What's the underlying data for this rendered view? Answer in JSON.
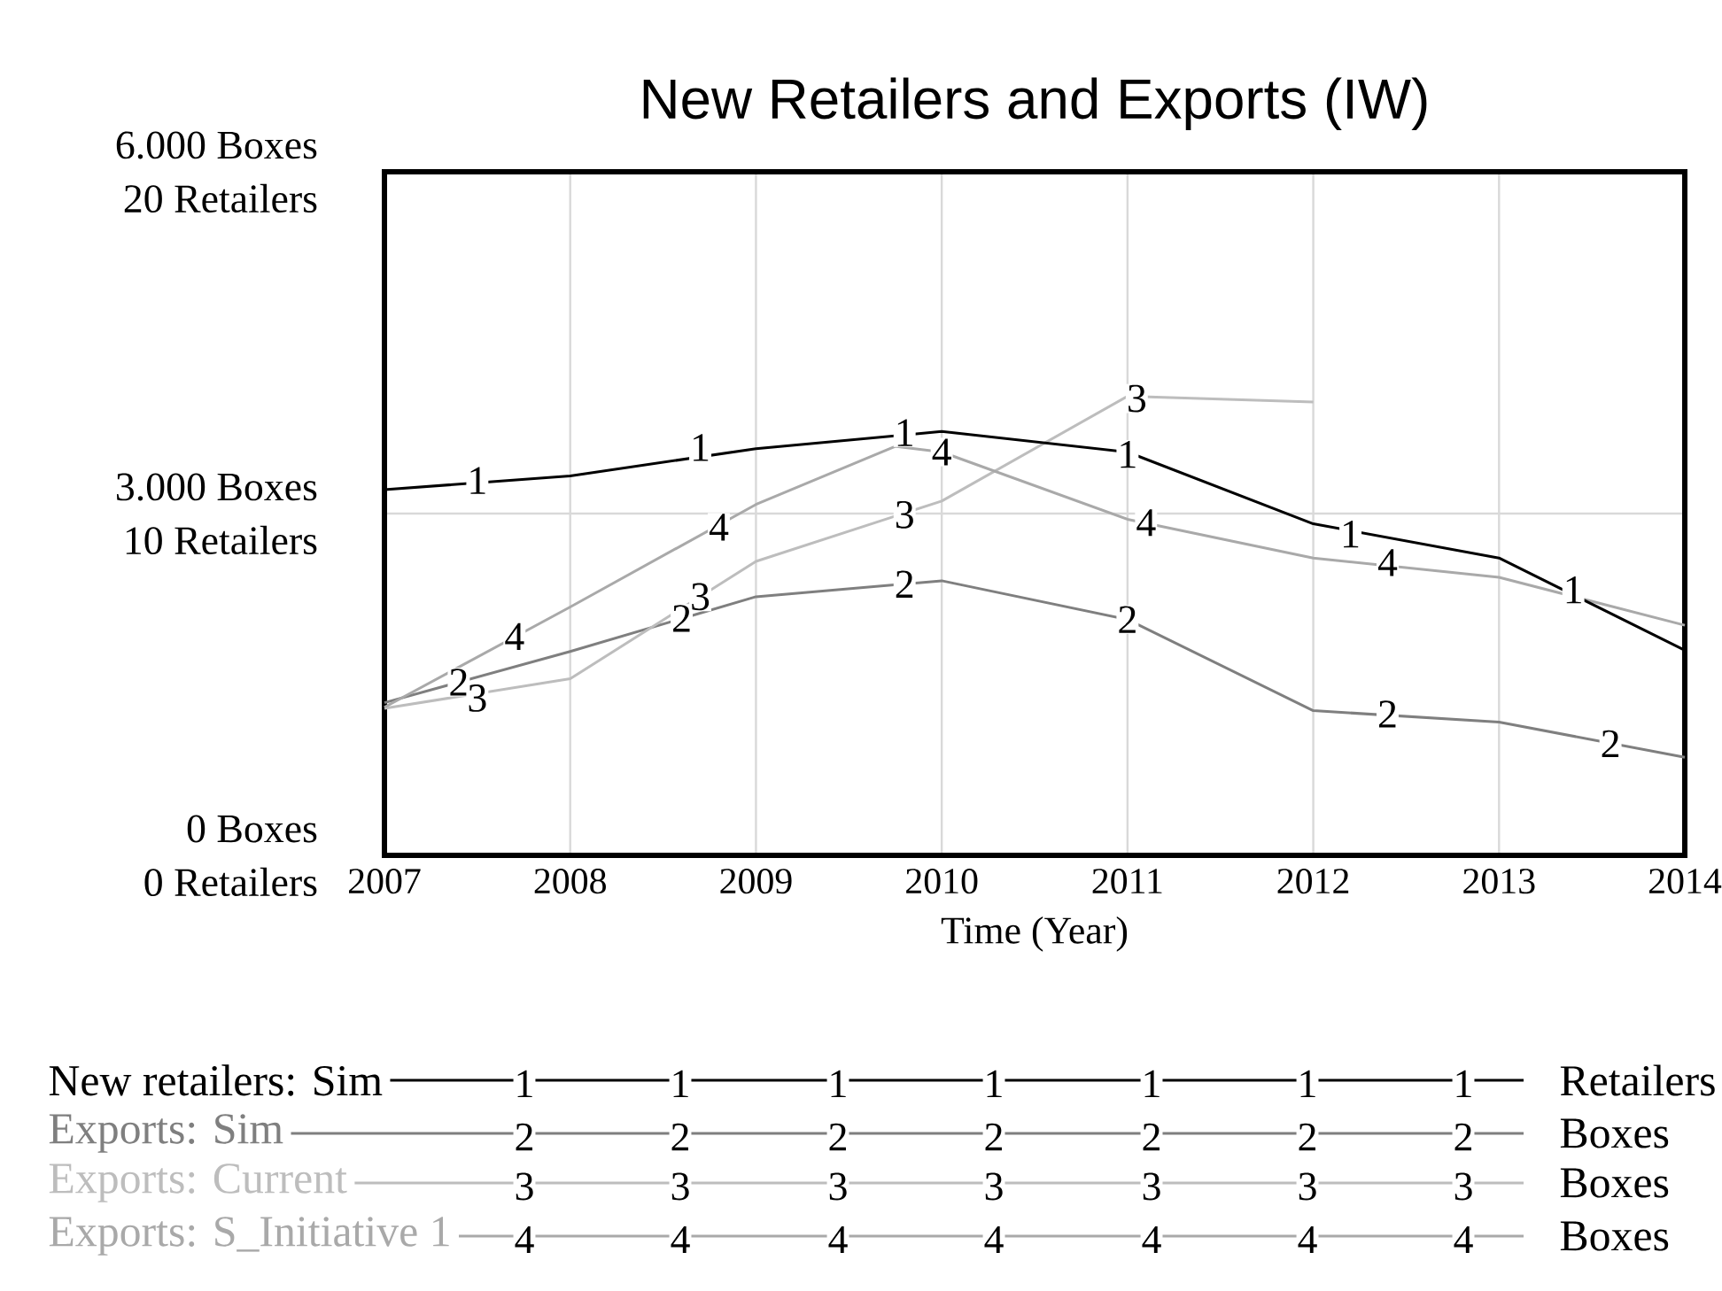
{
  "chart_data": {
    "type": "line",
    "title": "New Retailers and Exports (IW)",
    "xlabel": "Time (Year)",
    "x": [
      2007,
      2008,
      2009,
      2010,
      2011,
      2012,
      2013,
      2014
    ],
    "series": [
      {
        "name": "New retailers: Sim",
        "color": "#000000",
        "axis": "y2",
        "values": [
          10.7,
          11.1,
          11.9,
          12.4,
          11.8,
          9.7,
          8.7,
          6.0
        ]
      },
      {
        "name": "Exports: Sim",
        "color": "#7f7f7f",
        "values": [
          1340,
          1790,
          2270,
          2410,
          2070,
          1270,
          1170,
          860
        ]
      },
      {
        "name": "Exports: Current",
        "color": "#bdbdbd",
        "values": [
          1290,
          1550,
          2580,
          3110,
          4030,
          3980,
          null,
          null
        ]
      },
      {
        "name": "Exports: S_Initiative 1",
        "color": "#a9a9a9",
        "x": [
          2007,
          2008,
          2009,
          2009.75,
          2010,
          2011,
          2012,
          2013,
          2014
        ],
        "values": [
          1300,
          2180,
          3080,
          3590,
          3540,
          2950,
          2610,
          2440,
          2020
        ]
      }
    ],
    "xlim": [
      2007,
      2014
    ],
    "xticks": [
      2007,
      2008,
      2009,
      2010,
      2011,
      2012,
      2013,
      2014
    ],
    "ylim": [
      0,
      6000
    ],
    "yticks": [
      {
        "value": 0,
        "label": "0 Boxes"
      },
      {
        "value": 3000,
        "label": "3.000 Boxes"
      },
      {
        "value": 6000,
        "label": "6.000 Boxes"
      }
    ],
    "y2lim": [
      0,
      20
    ],
    "y2ticks": [
      {
        "value": 0,
        "label": "0 Retailers"
      },
      {
        "value": 10,
        "label": "10 Retailers"
      },
      {
        "value": 20,
        "label": "20 Retailers"
      }
    ],
    "grid": true,
    "legend": "bottom",
    "annotations": [
      "Retailers",
      "Boxes",
      "Boxes",
      "Boxes",
      {
        "text": "1",
        "x": 2007.5,
        "y": 3290
      },
      {
        "text": "2",
        "x": 2007.4,
        "y": 1520
      },
      {
        "text": "3",
        "x": 2007.5,
        "y": 1380
      },
      {
        "text": "4",
        "x": 2007.7,
        "y": 1920
      },
      {
        "text": "1",
        "x": 2008.7,
        "y": 3580
      },
      {
        "text": "1",
        "x": 2009.8,
        "y": 3710
      },
      {
        "text": "1",
        "x": 2011.0,
        "y": 3520
      },
      {
        "text": "1",
        "x": 2012.2,
        "y": 2820
      },
      {
        "text": "1",
        "x": 2013.4,
        "y": 2330
      },
      {
        "text": "2",
        "x": 2008.6,
        "y": 2080
      },
      {
        "text": "2",
        "x": 2009.8,
        "y": 2380
      },
      {
        "text": "2",
        "x": 2011.0,
        "y": 2070
      },
      {
        "text": "2",
        "x": 2012.4,
        "y": 1240
      },
      {
        "text": "2",
        "x": 2013.6,
        "y": 980
      },
      {
        "text": "3",
        "x": 2008.7,
        "y": 2270
      },
      {
        "text": "3",
        "x": 2009.8,
        "y": 2990
      },
      {
        "text": "3",
        "x": 2011.05,
        "y": 4010
      },
      {
        "text": "4",
        "x": 2008.8,
        "y": 2880
      },
      {
        "text": "4",
        "x": 2010.0,
        "y": 3540
      },
      {
        "text": "4",
        "x": 2011.1,
        "y": 2920
      },
      {
        "text": "4",
        "x": 2012.4,
        "y": 2570
      }
    ]
  }
}
